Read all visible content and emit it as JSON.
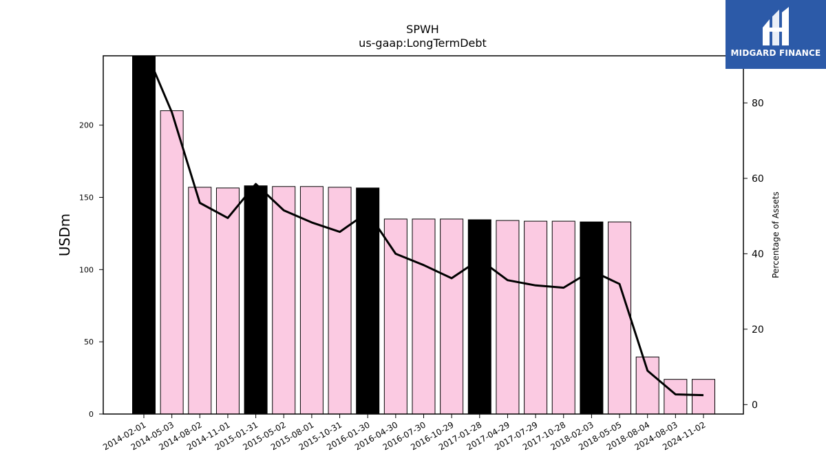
{
  "chart_data": {
    "type": "bar",
    "title": "SPWH",
    "subtitle": "us-gaap:LongTermDebt",
    "ylabel": "USDm",
    "y2label": "Percentage of Assets",
    "categories": [
      "2014-02-01",
      "2014-05-03",
      "2014-08-02",
      "2014-11-01",
      "2015-01-31",
      "2015-05-02",
      "2015-08-01",
      "2015-10-31",
      "2016-01-30",
      "2016-04-30",
      "2016-07-30",
      "2016-10-29",
      "2017-01-28",
      "2017-04-29",
      "2017-07-29",
      "2017-10-28",
      "2018-02-03",
      "2018-05-05",
      "2018-08-04",
      "2024-08-03",
      "2024-11-02"
    ],
    "values": [
      248,
      210,
      157,
      156.5,
      158,
      157.5,
      157.5,
      157,
      156.5,
      135,
      135,
      135,
      134.5,
      134,
      133.5,
      133.5,
      133,
      133,
      39.5,
      24,
      24
    ],
    "bar_colors": [
      "#000000",
      "#fbcae2",
      "#fbcae2",
      "#fbcae2",
      "#000000",
      "#fbcae2",
      "#fbcae2",
      "#fbcae2",
      "#000000",
      "#fbcae2",
      "#fbcae2",
      "#fbcae2",
      "#000000",
      "#fbcae2",
      "#fbcae2",
      "#fbcae2",
      "#000000",
      "#fbcae2",
      "#fbcae2",
      "#fbcae2",
      "#fbcae2"
    ],
    "line_values": [
      95,
      77.5,
      53.5,
      49.5,
      58.5,
      51.5,
      48.3,
      45.8,
      51,
      40,
      37,
      33.5,
      38.5,
      33,
      31.6,
      31,
      35.5,
      32,
      9,
      2.7,
      2.5
    ],
    "line_color": "#000000",
    "ylim": [
      0,
      248
    ],
    "y_ticks": [
      0,
      50,
      100,
      150,
      200
    ],
    "y2lim": [
      -2.5,
      92.5
    ],
    "y2_ticks": [
      0,
      20,
      40,
      60,
      80
    ],
    "grid": false,
    "legend": "none"
  },
  "logo": {
    "text": "MIDGARD FINANCE",
    "background": "#2c5aa8"
  }
}
